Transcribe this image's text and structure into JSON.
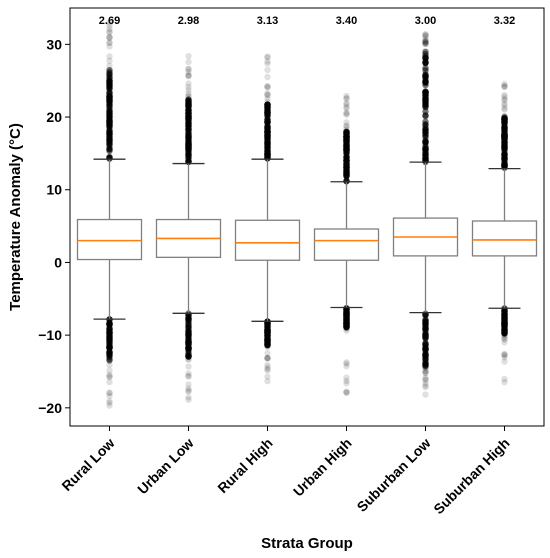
{
  "chart_data": {
    "type": "box",
    "title": "",
    "xlabel": "Strata Group",
    "ylabel": "Temperature Anomaly (°C)",
    "ylim": [
      -22.5,
      35
    ],
    "yticks": [
      -20,
      -10,
      0,
      10,
      20,
      30
    ],
    "ytick_labels": [
      "−20",
      "−10",
      "0",
      "10",
      "20",
      "30"
    ],
    "grid": false,
    "median_color": "#ff7f0e",
    "box_color": "#808080",
    "outlier_color": "#000000",
    "categories": [
      "Rural Low",
      "Urban Low",
      "Rural High",
      "Urban High",
      "Suburban Low",
      "Suburban High"
    ],
    "annotations": [
      "2.69",
      "2.98",
      "3.13",
      "3.40",
      "3.00",
      "3.32"
    ],
    "boxes": [
      {
        "label": "Rural Low",
        "whislo": -7.8,
        "q1": 0.4,
        "med": 3.0,
        "q3": 5.9,
        "whishi": 14.2,
        "flier_lo_dense": -13.5,
        "flier_hi_dense": 26.5,
        "flier_min": -19.8,
        "flier_max": 33.0
      },
      {
        "label": "Urban Low",
        "whislo": -7.0,
        "q1": 0.7,
        "med": 3.3,
        "q3": 5.9,
        "whishi": 13.6,
        "flier_lo_dense": -13.0,
        "flier_hi_dense": 22.5,
        "flier_min": -19.0,
        "flier_max": 29.0
      },
      {
        "label": "Rural High",
        "whislo": -8.1,
        "q1": 0.3,
        "med": 2.7,
        "q3": 5.8,
        "whishi": 14.2,
        "flier_lo_dense": -11.5,
        "flier_hi_dense": 22.0,
        "flier_min": -16.8,
        "flier_max": 29.5
      },
      {
        "label": "Urban High",
        "whislo": -6.2,
        "q1": 0.3,
        "med": 3.0,
        "q3": 4.6,
        "whishi": 11.1,
        "flier_lo_dense": -9.0,
        "flier_hi_dense": 18.0,
        "flier_min": -19.0,
        "flier_max": 23.0
      },
      {
        "label": "Suburban Low",
        "whislo": -6.9,
        "q1": 0.9,
        "med": 3.5,
        "q3": 6.1,
        "whishi": 13.8,
        "flier_lo_dense": -14.5,
        "flier_hi_dense": 30.0,
        "flier_min": -18.5,
        "flier_max": 31.5
      },
      {
        "label": "Suburban High",
        "whislo": -6.3,
        "q1": 0.9,
        "med": 3.1,
        "q3": 5.7,
        "whishi": 12.9,
        "flier_lo_dense": -10.0,
        "flier_hi_dense": 20.0,
        "flier_min": -17.0,
        "flier_max": 25.0
      }
    ]
  }
}
